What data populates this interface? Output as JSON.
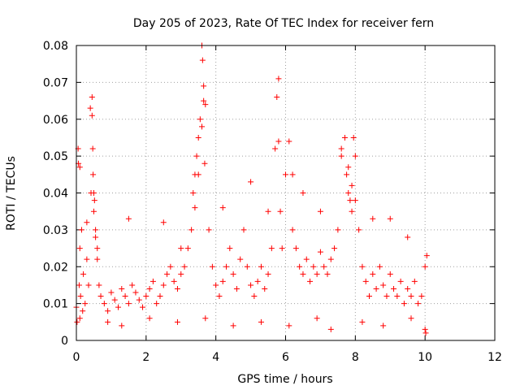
{
  "chart_data": {
    "type": "scatter",
    "title": "Day 205 of 2023, Rate Of TEC Index for receiver fern",
    "xlabel": "GPS time / hours",
    "ylabel": "ROTI / TECUs",
    "xlim": [
      0,
      12
    ],
    "ylim": [
      0,
      0.08
    ],
    "x_ticks": [
      "0",
      "2",
      "4",
      "6",
      "8",
      "10",
      "12"
    ],
    "y_ticks": [
      "0",
      "0.01",
      "0.02",
      "0.03",
      "0.04",
      "0.05",
      "0.06",
      "0.07",
      "0.08"
    ],
    "grid": true,
    "marker": "plus",
    "color": "#ff0000",
    "series": [
      {
        "x": [
          0.0,
          0.05,
          0.08,
          0.1,
          0.12,
          0.15,
          0.18,
          0.2,
          0.25,
          0.3,
          0.35,
          0.4,
          0.42,
          0.45,
          0.48,
          0.5,
          0.52,
          0.55,
          0.6,
          0.65,
          0.7,
          0.8,
          0.9,
          1.0,
          1.1,
          1.2,
          1.3,
          1.4,
          1.5,
          1.6,
          1.7,
          1.8,
          1.9,
          2.0,
          2.1,
          2.2,
          2.3,
          2.4,
          2.5,
          2.6,
          2.7,
          2.8,
          2.9,
          3.0,
          3.1,
          3.2,
          3.3,
          3.35,
          3.4,
          3.45,
          3.5,
          3.55,
          3.6,
          3.62,
          3.65,
          3.7,
          3.8,
          3.9,
          4.0,
          4.1,
          4.2,
          4.3,
          4.4,
          4.5,
          4.6,
          4.7,
          4.8,
          4.9,
          5.0,
          5.1,
          5.2,
          5.3,
          5.4,
          5.5,
          5.6,
          5.7,
          5.75,
          5.8,
          5.85,
          5.9,
          6.0,
          6.1,
          6.2,
          6.3,
          6.4,
          6.5,
          6.6,
          6.7,
          6.8,
          6.9,
          7.0,
          7.1,
          7.2,
          7.3,
          7.4,
          7.5,
          7.6,
          7.7,
          7.75,
          7.8,
          7.85,
          7.9,
          7.95,
          8.0,
          8.1,
          8.2,
          8.3,
          8.4,
          8.5,
          8.6,
          8.7,
          8.8,
          8.9,
          9.0,
          9.1,
          9.2,
          9.3,
          9.4,
          9.5,
          9.6,
          9.7,
          9.8,
          9.9,
          10.0,
          10.05,
          0.02,
          0.06,
          0.1,
          0.3,
          0.45,
          0.47,
          0.5,
          0.55,
          0.6,
          1.5,
          2.5,
          3.0,
          3.4,
          3.5,
          3.6,
          3.65,
          3.68,
          4.2,
          5.0,
          5.5,
          5.8,
          6.2,
          6.5,
          7.0,
          7.6,
          7.8,
          7.9,
          8.0,
          8.5,
          9.0,
          9.5,
          10.0,
          0.1,
          0.9,
          1.3,
          2.1,
          2.9,
          3.7,
          4.5,
          5.3,
          6.1,
          6.9,
          7.3,
          8.2,
          8.8,
          9.6,
          10.02
        ],
        "y": [
          0.009,
          0.052,
          0.015,
          0.025,
          0.012,
          0.03,
          0.008,
          0.018,
          0.01,
          0.022,
          0.015,
          0.063,
          0.04,
          0.066,
          0.045,
          0.035,
          0.038,
          0.028,
          0.022,
          0.015,
          0.012,
          0.01,
          0.008,
          0.013,
          0.011,
          0.009,
          0.014,
          0.012,
          0.01,
          0.015,
          0.013,
          0.011,
          0.009,
          0.012,
          0.014,
          0.016,
          0.01,
          0.012,
          0.015,
          0.018,
          0.02,
          0.016,
          0.014,
          0.018,
          0.02,
          0.025,
          0.03,
          0.04,
          0.045,
          0.05,
          0.055,
          0.06,
          0.08,
          0.076,
          0.069,
          0.064,
          0.03,
          0.02,
          0.015,
          0.012,
          0.016,
          0.02,
          0.025,
          0.018,
          0.014,
          0.022,
          0.03,
          0.02,
          0.015,
          0.012,
          0.016,
          0.02,
          0.014,
          0.018,
          0.025,
          0.052,
          0.066,
          0.071,
          0.035,
          0.025,
          0.045,
          0.054,
          0.03,
          0.025,
          0.02,
          0.018,
          0.022,
          0.016,
          0.02,
          0.018,
          0.024,
          0.02,
          0.018,
          0.022,
          0.025,
          0.03,
          0.05,
          0.055,
          0.045,
          0.04,
          0.038,
          0.035,
          0.055,
          0.05,
          0.03,
          0.02,
          0.016,
          0.012,
          0.018,
          0.014,
          0.02,
          0.015,
          0.012,
          0.018,
          0.014,
          0.012,
          0.016,
          0.01,
          0.014,
          0.012,
          0.016,
          0.01,
          0.012,
          0.003,
          0.023,
          0.005,
          0.048,
          0.047,
          0.032,
          0.061,
          0.052,
          0.04,
          0.03,
          0.025,
          0.033,
          0.032,
          0.025,
          0.036,
          0.045,
          0.058,
          0.065,
          0.048,
          0.036,
          0.043,
          0.035,
          0.054,
          0.045,
          0.04,
          0.035,
          0.052,
          0.047,
          0.042,
          0.038,
          0.033,
          0.033,
          0.028,
          0.02,
          0.006,
          0.005,
          0.004,
          0.006,
          0.005,
          0.006,
          0.004,
          0.005,
          0.004,
          0.006,
          0.003,
          0.005,
          0.004,
          0.006,
          0.002
        ]
      }
    ]
  }
}
